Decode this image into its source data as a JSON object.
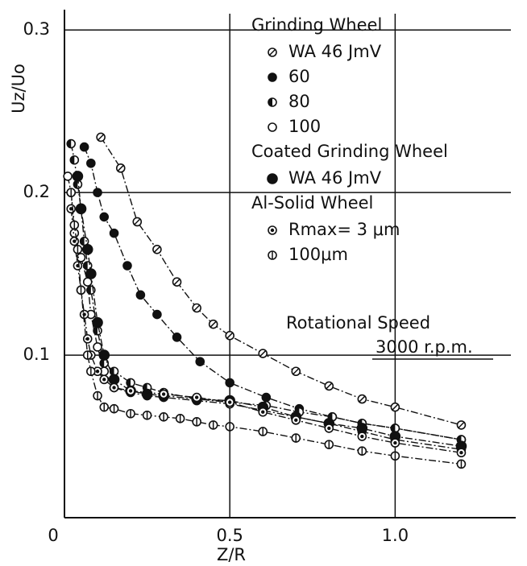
{
  "chart_data": {
    "type": "scatter",
    "x_label": "Z/R",
    "y_label": "Uz/Uo",
    "xlim": [
      0,
      1.35
    ],
    "ylim": [
      0,
      0.31
    ],
    "xticks": [
      0,
      0.5,
      {
        "value": 1,
        "label": "1.0"
      }
    ],
    "yticks": [
      0.1,
      0.2,
      0.3
    ],
    "grid": true,
    "groups": [
      {
        "title": "Grinding Wheel",
        "series": [
          {
            "name": "WA 46 JmV",
            "marker": "slash",
            "x": [
              0.11,
              0.17,
              0.22,
              0.28,
              0.34,
              0.4,
              0.45,
              0.5,
              0.6,
              0.7,
              0.8,
              0.9,
              1.0,
              1.2
            ],
            "values": [
              0.234,
              0.215,
              0.182,
              0.165,
              0.145,
              0.129,
              0.119,
              0.112,
              0.101,
              0.09,
              0.081,
              0.073,
              0.068,
              0.057
            ]
          },
          {
            "name": "60",
            "marker": "filled",
            "x": [
              0.06,
              0.08,
              0.1,
              0.12,
              0.15,
              0.19,
              0.23,
              0.28,
              0.34,
              0.41,
              0.5,
              0.61,
              0.71,
              0.81,
              0.9,
              1.0,
              1.2
            ],
            "values": [
              0.228,
              0.218,
              0.2,
              0.185,
              0.175,
              0.155,
              0.137,
              0.125,
              0.111,
              0.096,
              0.083,
              0.074,
              0.067,
              0.062,
              0.058,
              0.055,
              0.048
            ]
          },
          {
            "name": "80",
            "marker": "half",
            "x": [
              0.02,
              0.03,
              0.04,
              0.05,
              0.06,
              0.07,
              0.08,
              0.1,
              0.12,
              0.15,
              0.2,
              0.25,
              0.3,
              0.4,
              0.5,
              0.61,
              0.71,
              0.81,
              0.9,
              1.0,
              1.2
            ],
            "values": [
              0.23,
              0.22,
              0.205,
              0.19,
              0.17,
              0.155,
              0.14,
              0.115,
              0.095,
              0.09,
              0.083,
              0.08,
              0.077,
              0.073,
              0.071,
              0.069,
              0.065,
              0.062,
              0.058,
              0.055,
              0.048
            ]
          },
          {
            "name": "100",
            "marker": "open",
            "x": [
              0.01,
              0.02,
              0.03,
              0.05,
              0.07,
              0.08,
              0.1,
              0.12,
              0.15,
              0.2,
              0.25,
              0.3,
              0.4,
              0.5,
              0.6,
              0.7,
              0.8,
              0.9,
              1.0,
              1.2
            ],
            "values": [
              0.21,
              0.2,
              0.175,
              0.16,
              0.145,
              0.125,
              0.105,
              0.09,
              0.08,
              0.077,
              0.075,
              0.074,
              0.072,
              0.07,
              0.066,
              0.062,
              0.058,
              0.053,
              0.048,
              0.042
            ]
          }
        ]
      },
      {
        "title": "Coated Grinding Wheel",
        "series": [
          {
            "name": "WA 46 JmV",
            "marker": "solid",
            "x": [
              0.04,
              0.05,
              0.07,
              0.08,
              0.1,
              0.12,
              0.15,
              0.2,
              0.25,
              0.3,
              0.4,
              0.5,
              0.6,
              0.7,
              0.8,
              0.9,
              1.0,
              1.2
            ],
            "values": [
              0.21,
              0.19,
              0.165,
              0.15,
              0.12,
              0.1,
              0.085,
              0.078,
              0.076,
              0.075,
              0.073,
              0.072,
              0.068,
              0.062,
              0.058,
              0.055,
              0.05,
              0.044
            ]
          }
        ]
      },
      {
        "title": "Al-Solid Wheel",
        "series": [
          {
            "name": "Rmax= 3 μm",
            "marker": "dot",
            "x": [
              0.02,
              0.03,
              0.04,
              0.05,
              0.06,
              0.07,
              0.08,
              0.1,
              0.12,
              0.15,
              0.2,
              0.3,
              0.4,
              0.5,
              0.6,
              0.7,
              0.8,
              0.9,
              1.0,
              1.2
            ],
            "values": [
              0.19,
              0.17,
              0.155,
              0.14,
              0.125,
              0.11,
              0.1,
              0.09,
              0.085,
              0.08,
              0.078,
              0.076,
              0.074,
              0.071,
              0.065,
              0.06,
              0.055,
              0.05,
              0.046,
              0.04
            ]
          },
          {
            "name": "100μm",
            "marker": "vbar",
            "x": [
              0.02,
              0.03,
              0.04,
              0.05,
              0.07,
              0.08,
              0.1,
              0.12,
              0.15,
              0.2,
              0.25,
              0.3,
              0.35,
              0.4,
              0.45,
              0.5,
              0.6,
              0.7,
              0.8,
              0.9,
              1.0,
              1.2
            ],
            "values": [
              0.2,
              0.18,
              0.165,
              0.14,
              0.1,
              0.09,
              0.075,
              0.068,
              0.067,
              0.064,
              0.063,
              0.062,
              0.061,
              0.059,
              0.057,
              0.056,
              0.053,
              0.049,
              0.045,
              0.041,
              0.038,
              0.033
            ]
          }
        ]
      }
    ],
    "annotation": [
      "Rotational Speed",
      "3000 r.p.m."
    ]
  }
}
